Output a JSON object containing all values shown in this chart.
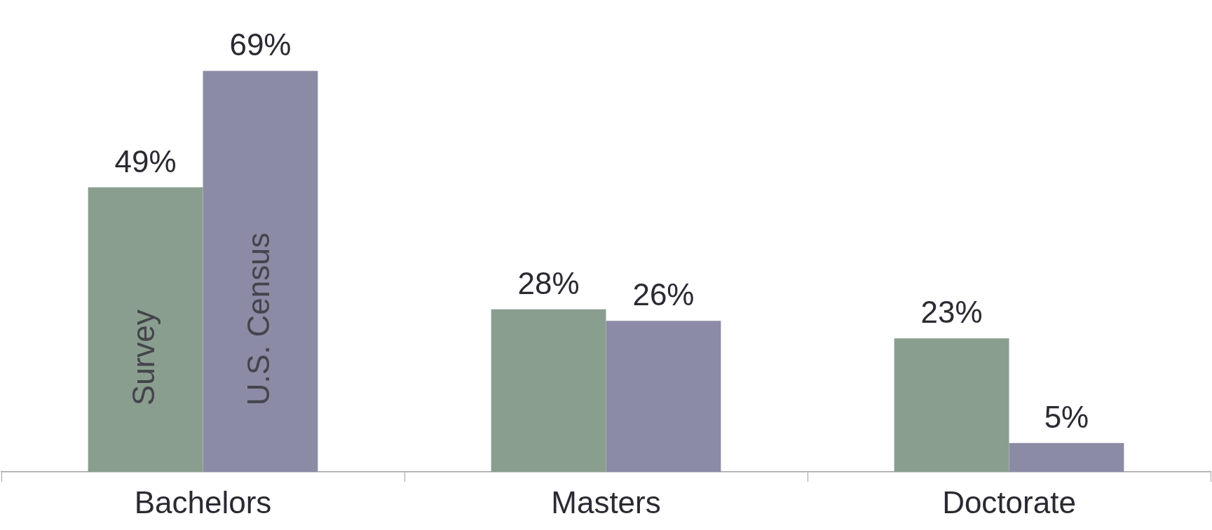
{
  "chart_data": {
    "type": "bar",
    "categories": [
      "Bachelors",
      "Masters",
      "Doctorate"
    ],
    "series": [
      {
        "name": "Survey",
        "color": "#8a9e8f",
        "values": [
          49,
          28,
          23
        ],
        "value_labels": [
          "49%",
          "28%",
          "23%"
        ]
      },
      {
        "name": "U.S. Census",
        "color": "#8b8ba5",
        "values": [
          69,
          26,
          5
        ],
        "value_labels": [
          "69%",
          "26%",
          "5%"
        ]
      }
    ],
    "grid": false,
    "legend": false
  }
}
